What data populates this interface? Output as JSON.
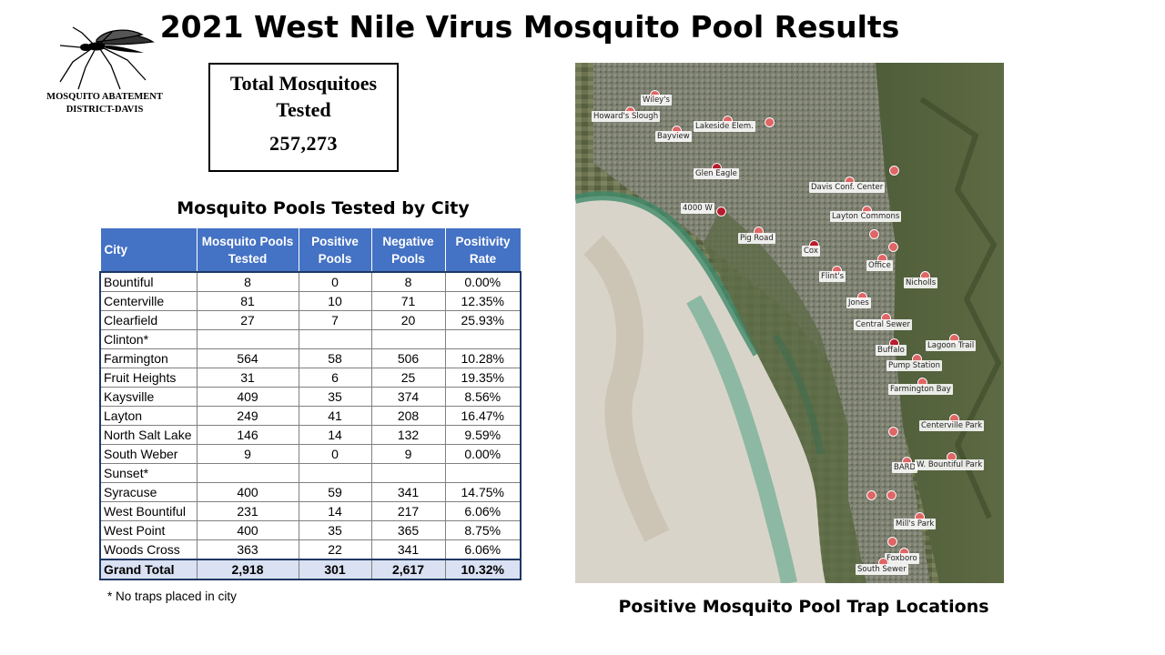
{
  "title": "2021 West Nile Virus Mosquito Pool Results",
  "logo": {
    "line1": "MOSQUITO ABATEMENT",
    "line2": "DISTRICT-DAVIS",
    "icon": "mosquito-icon"
  },
  "total_box": {
    "label_line1": "Total Mosquitoes",
    "label_line2": "Tested",
    "value": "257,273"
  },
  "table": {
    "title": "Mosquito Pools Tested by City",
    "headers": [
      "City",
      "Mosquito Pools Tested",
      "Positive Pools",
      "Negative Pools",
      "Positivity Rate"
    ],
    "rows": [
      [
        "Bountiful",
        "8",
        "0",
        "8",
        "0.00%"
      ],
      [
        "Centerville",
        "81",
        "10",
        "71",
        "12.35%"
      ],
      [
        "Clearfield",
        "27",
        "7",
        "20",
        "25.93%"
      ],
      [
        "Clinton*",
        "",
        "",
        "",
        ""
      ],
      [
        "Farmington",
        "564",
        "58",
        "506",
        "10.28%"
      ],
      [
        "Fruit Heights",
        "31",
        "6",
        "25",
        "19.35%"
      ],
      [
        "Kaysville",
        "409",
        "35",
        "374",
        "8.56%"
      ],
      [
        "Layton",
        "249",
        "41",
        "208",
        "16.47%"
      ],
      [
        "North Salt Lake",
        "146",
        "14",
        "132",
        "9.59%"
      ],
      [
        "South Weber",
        "9",
        "0",
        "9",
        "0.00%"
      ],
      [
        "Sunset*",
        "",
        "",
        "",
        ""
      ],
      [
        "Syracuse",
        "400",
        "59",
        "341",
        "14.75%"
      ],
      [
        "West Bountiful",
        "231",
        "14",
        "217",
        "6.06%"
      ],
      [
        "West Point",
        "400",
        "35",
        "365",
        "8.75%"
      ],
      [
        "Woods Cross",
        "363",
        "22",
        "341",
        "6.06%"
      ]
    ],
    "total": [
      "Grand Total",
      "2,918",
      "301",
      "2,617",
      "10.32%"
    ],
    "footnote": "* No traps placed in city"
  },
  "map": {
    "caption": "Positive Mosquito Pool Trap Locations",
    "labels": [
      "Wiley's",
      "Howard's Slough",
      "Lakeside Elem.",
      "Bayview",
      "Glen Eagle",
      "Davis Conf. Center",
      "4000 W",
      "Layton Commons",
      "Pig Road",
      "Cox",
      "Office",
      "Flint's",
      "Nicholls",
      "Jones",
      "Central Sewer",
      "Buffalo",
      "Lagoon Trail",
      "Pump Station",
      "Farmington Bay",
      "Centerville Park",
      "BARD",
      "W. Bountiful Park",
      "Mill's Park",
      "Foxboro",
      "South Sewer"
    ]
  }
}
